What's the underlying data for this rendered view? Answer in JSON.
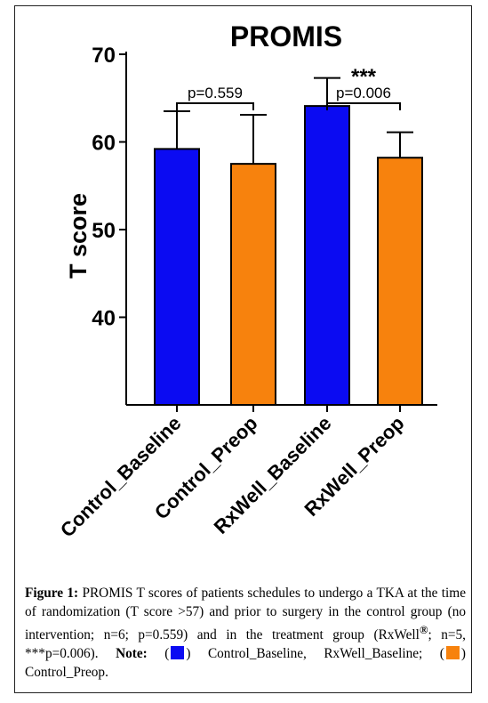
{
  "chart_data": {
    "type": "bar",
    "title": "PROMIS",
    "ylabel": "T score",
    "xlabel": "",
    "ylim": [
      30,
      70
    ],
    "yticks": [
      40,
      50,
      60,
      70
    ],
    "grid": false,
    "categories": [
      "Control_Baseline",
      "Control_Preop",
      "RxWell_Baseline",
      "RxWell_Preop"
    ],
    "values": [
      59.2,
      57.5,
      64.1,
      58.2
    ],
    "error_upper": [
      4.3,
      5.6,
      3.2,
      2.9
    ],
    "bar_colors": [
      "#0b0bf2",
      "#f7820d",
      "#0b0bf2",
      "#f7820d"
    ],
    "annotations": [
      {
        "from": 0,
        "to": 1,
        "label": "p=0.559",
        "stars": ""
      },
      {
        "from": 2,
        "to": 3,
        "label": "p=0.006",
        "stars": "***"
      }
    ]
  },
  "caption": {
    "fig_label": "Figure 1:",
    "text_1": " PROMIS T scores of patients schedules to undergo a TKA at the time of randomization (T score >57) and prior to surgery in the control group (no intervention; n=6; p=0.559) and in the treatment group (RxWell",
    "reg_mark": "®",
    "text_2": "; n=5, ***p=0.006). ",
    "note_label": "Note:",
    "paren_open_1": " (",
    "paren_close_1": ") Control_Baseline, RxWell_Baseline; (",
    "paren_close_2": ") Control_Preop.",
    "swatch_blue": "#0b0bf2",
    "swatch_orange": "#f7820d"
  }
}
